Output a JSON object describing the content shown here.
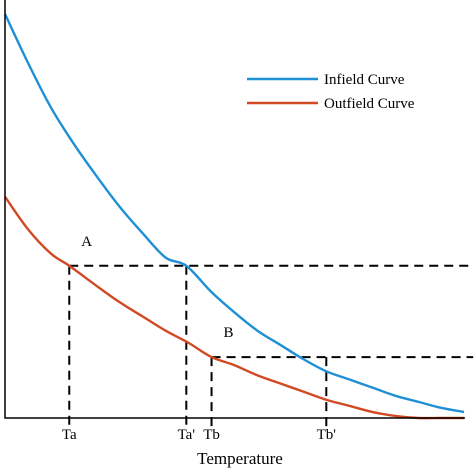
{
  "chart_data": {
    "type": "line",
    "title": "",
    "xlabel": "Temperature",
    "ylabel": "",
    "grid": false,
    "legend_position": "top-right",
    "xlim": [
      0,
      10
    ],
    "ylim": [
      0,
      10
    ],
    "x_ticks": [
      {
        "x": 1.4,
        "label": "Ta"
      },
      {
        "x": 3.95,
        "label": "Ta'"
      },
      {
        "x": 4.5,
        "label": "Tb"
      },
      {
        "x": 7.0,
        "label": "Tb'"
      }
    ],
    "series": [
      {
        "name": "Infield Curve",
        "color": "#1f8fd6",
        "x": [
          0.0,
          0.5,
          1.0,
          1.5,
          2.0,
          2.5,
          3.0,
          3.5,
          3.95,
          4.5,
          5.0,
          5.5,
          6.0,
          6.5,
          7.0,
          7.5,
          8.0,
          8.5,
          9.0,
          9.5,
          10.0
        ],
        "y": [
          9.95,
          8.75,
          7.65,
          6.75,
          5.95,
          5.2,
          4.55,
          3.95,
          3.75,
          3.1,
          2.6,
          2.15,
          1.8,
          1.45,
          1.15,
          0.95,
          0.75,
          0.55,
          0.4,
          0.25,
          0.15
        ]
      },
      {
        "name": "Outfield Curve",
        "color": "#d14a24",
        "x": [
          0.0,
          0.5,
          1.0,
          1.4,
          2.0,
          2.5,
          3.0,
          3.5,
          4.0,
          4.5,
          5.0,
          5.5,
          6.0,
          6.5,
          7.0,
          7.5,
          8.0,
          8.5,
          9.0,
          9.5,
          10.0
        ],
        "y": [
          5.45,
          4.65,
          4.05,
          3.75,
          3.25,
          2.85,
          2.5,
          2.15,
          1.85,
          1.5,
          1.3,
          1.05,
          0.85,
          0.65,
          0.45,
          0.3,
          0.15,
          0.05,
          0.0,
          0.0,
          0.0
        ]
      }
    ],
    "annotations": [
      {
        "label": "A",
        "x": 1.4,
        "y": 3.75
      },
      {
        "label": "B",
        "x": 4.5,
        "y": 1.5
      }
    ],
    "guides": [
      {
        "from": [
          1.4,
          3.75
        ],
        "to": [
          10.2,
          3.75
        ]
      },
      {
        "from": [
          1.4,
          3.75
        ],
        "to": [
          1.4,
          -0.25
        ]
      },
      {
        "from": [
          3.95,
          3.75
        ],
        "to": [
          3.95,
          -0.25
        ]
      },
      {
        "from": [
          4.5,
          1.5
        ],
        "to": [
          10.2,
          1.5
        ]
      },
      {
        "from": [
          4.5,
          1.5
        ],
        "to": [
          4.5,
          -0.25
        ]
      },
      {
        "from": [
          7.0,
          1.5
        ],
        "to": [
          7.0,
          -0.25
        ]
      }
    ]
  }
}
